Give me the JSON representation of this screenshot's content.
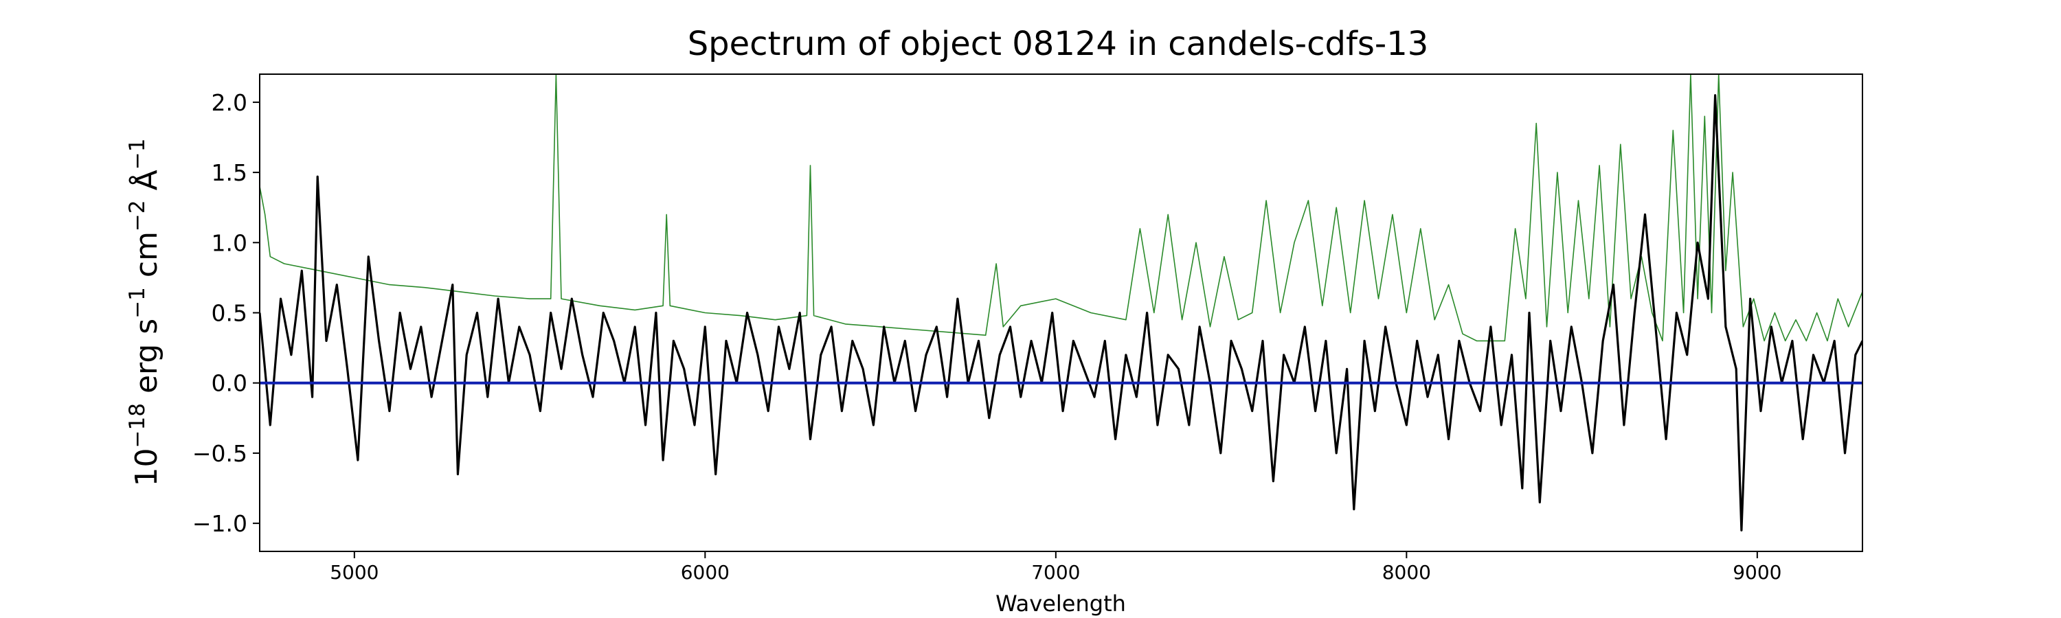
{
  "chart_data": {
    "type": "line",
    "title": "Spectrum of object 08124 in candels-cdfs-13",
    "xlabel": "Wavelength",
    "ylabel_base": "10",
    "ylabel_exp": "−18",
    "ylabel_units": [
      {
        "t": " erg s",
        "sup": "−1"
      },
      {
        "t": " cm",
        "sup": "−2"
      },
      {
        "t": " Å",
        "sup": "−1"
      }
    ],
    "xlim": [
      4730,
      9300
    ],
    "ylim": [
      -1.2,
      2.2
    ],
    "xticks": [
      5000,
      6000,
      7000,
      8000,
      9000
    ],
    "xtick_labels": [
      "5000",
      "6000",
      "7000",
      "8000",
      "9000"
    ],
    "yticks": [
      -1.0,
      -0.5,
      0.0,
      0.5,
      1.0,
      1.5,
      2.0
    ],
    "ytick_labels": [
      "−1.0",
      "−0.5",
      "0.0",
      "0.5",
      "1.0",
      "1.5",
      "2.0"
    ],
    "grid": false,
    "colors": {
      "flux": "#000000",
      "error": "#2a8a2a",
      "zero": "#1020b0"
    },
    "series": [
      {
        "role": "flux",
        "x": [
          4730,
          4760,
          4790,
          4820,
          4850,
          4880,
          4895,
          4920,
          4950,
          4980,
          5010,
          5040,
          5070,
          5100,
          5130,
          5160,
          5190,
          5220,
          5250,
          5280,
          5295,
          5320,
          5350,
          5380,
          5410,
          5440,
          5470,
          5500,
          5530,
          5560,
          5590,
          5620,
          5650,
          5680,
          5710,
          5740,
          5770,
          5800,
          5830,
          5860,
          5880,
          5910,
          5940,
          5970,
          6000,
          6030,
          6060,
          6090,
          6120,
          6150,
          6180,
          6210,
          6240,
          6270,
          6300,
          6330,
          6360,
          6390,
          6420,
          6450,
          6480,
          6510,
          6540,
          6570,
          6600,
          6630,
          6660,
          6690,
          6720,
          6750,
          6780,
          6810,
          6840,
          6870,
          6900,
          6930,
          6960,
          6990,
          7020,
          7050,
          7080,
          7110,
          7140,
          7170,
          7200,
          7230,
          7260,
          7290,
          7320,
          7350,
          7380,
          7410,
          7440,
          7470,
          7500,
          7530,
          7560,
          7590,
          7620,
          7650,
          7680,
          7710,
          7740,
          7770,
          7800,
          7830,
          7850,
          7880,
          7910,
          7940,
          7970,
          8000,
          8030,
          8060,
          8090,
          8120,
          8150,
          8180,
          8210,
          8240,
          8270,
          8300,
          8330,
          8350,
          8380,
          8410,
          8440,
          8470,
          8500,
          8530,
          8560,
          8590,
          8620,
          8650,
          8680,
          8710,
          8740,
          8770,
          8800,
          8830,
          8860,
          8880,
          8910,
          8940,
          8955,
          8980,
          9010,
          9040,
          9070,
          9100,
          9130,
          9160,
          9190,
          9220,
          9250,
          9280,
          9300
        ],
        "y": [
          0.5,
          -0.3,
          0.6,
          0.2,
          0.8,
          -0.1,
          1.47,
          0.3,
          0.7,
          0.1,
          -0.55,
          0.9,
          0.3,
          -0.2,
          0.5,
          0.1,
          0.4,
          -0.1,
          0.3,
          0.7,
          -0.65,
          0.2,
          0.5,
          -0.1,
          0.6,
          0.0,
          0.4,
          0.2,
          -0.2,
          0.5,
          0.1,
          0.6,
          0.2,
          -0.1,
          0.5,
          0.3,
          0.0,
          0.4,
          -0.3,
          0.5,
          -0.55,
          0.3,
          0.1,
          -0.3,
          0.4,
          -0.65,
          0.3,
          0.0,
          0.5,
          0.2,
          -0.2,
          0.4,
          0.1,
          0.5,
          -0.4,
          0.2,
          0.4,
          -0.2,
          0.3,
          0.1,
          -0.3,
          0.4,
          0.0,
          0.3,
          -0.2,
          0.2,
          0.4,
          -0.1,
          0.6,
          0.0,
          0.3,
          -0.25,
          0.2,
          0.4,
          -0.1,
          0.3,
          0.0,
          0.5,
          -0.2,
          0.3,
          0.1,
          -0.1,
          0.3,
          -0.4,
          0.2,
          -0.1,
          0.5,
          -0.3,
          0.2,
          0.1,
          -0.3,
          0.4,
          0.0,
          -0.5,
          0.3,
          0.1,
          -0.2,
          0.3,
          -0.7,
          0.2,
          0.0,
          0.4,
          -0.2,
          0.3,
          -0.5,
          0.1,
          -0.9,
          0.3,
          -0.2,
          0.4,
          0.0,
          -0.3,
          0.3,
          -0.1,
          0.2,
          -0.4,
          0.3,
          0.0,
          -0.2,
          0.4,
          -0.3,
          0.2,
          -0.75,
          0.5,
          -0.85,
          0.3,
          -0.2,
          0.4,
          0.0,
          -0.5,
          0.3,
          0.7,
          -0.3,
          0.5,
          1.2,
          0.4,
          -0.4,
          0.5,
          0.2,
          1.0,
          0.6,
          2.05,
          0.4,
          0.1,
          -1.05,
          0.6,
          -0.2,
          0.4,
          0.0,
          0.3,
          -0.4,
          0.2,
          0.0,
          0.3,
          -0.5,
          0.2,
          0.3
        ]
      },
      {
        "role": "error",
        "x": [
          4730,
          4745,
          4760,
          4800,
          4900,
          5000,
          5100,
          5200,
          5300,
          5400,
          5500,
          5560,
          5575,
          5590,
          5700,
          5800,
          5880,
          5890,
          5900,
          6000,
          6100,
          6200,
          6290,
          6300,
          6310,
          6400,
          6500,
          6600,
          6700,
          6800,
          6830,
          6850,
          6900,
          7000,
          7100,
          7200,
          7240,
          7280,
          7320,
          7360,
          7400,
          7440,
          7480,
          7520,
          7560,
          7600,
          7640,
          7680,
          7720,
          7760,
          7800,
          7840,
          7880,
          7920,
          7960,
          8000,
          8040,
          8080,
          8120,
          8160,
          8200,
          8240,
          8280,
          8310,
          8340,
          8370,
          8400,
          8430,
          8460,
          8490,
          8520,
          8550,
          8580,
          8610,
          8640,
          8670,
          8700,
          8730,
          8760,
          8790,
          8810,
          8830,
          8850,
          8870,
          8890,
          8910,
          8930,
          8960,
          8990,
          9020,
          9050,
          9080,
          9110,
          9140,
          9170,
          9200,
          9230,
          9260,
          9300
        ],
        "y": [
          1.4,
          1.2,
          0.9,
          0.85,
          0.8,
          0.75,
          0.7,
          0.68,
          0.65,
          0.62,
          0.6,
          0.6,
          2.2,
          0.6,
          0.55,
          0.52,
          0.55,
          1.2,
          0.55,
          0.5,
          0.48,
          0.45,
          0.48,
          1.55,
          0.48,
          0.42,
          0.4,
          0.38,
          0.36,
          0.34,
          0.85,
          0.4,
          0.55,
          0.6,
          0.5,
          0.45,
          1.1,
          0.5,
          1.2,
          0.45,
          1.0,
          0.4,
          0.9,
          0.45,
          0.5,
          1.3,
          0.5,
          1.0,
          1.3,
          0.55,
          1.25,
          0.5,
          1.3,
          0.6,
          1.2,
          0.5,
          1.1,
          0.45,
          0.7,
          0.35,
          0.3,
          0.3,
          0.3,
          1.1,
          0.6,
          1.85,
          0.4,
          1.5,
          0.5,
          1.3,
          0.6,
          1.55,
          0.4,
          1.7,
          0.6,
          0.9,
          0.5,
          0.3,
          1.8,
          0.5,
          2.2,
          0.6,
          1.9,
          0.5,
          2.2,
          0.8,
          1.5,
          0.4,
          0.6,
          0.3,
          0.5,
          0.3,
          0.45,
          0.3,
          0.5,
          0.3,
          0.6,
          0.4,
          0.65
        ]
      },
      {
        "role": "zero",
        "x": [
          4730,
          9300
        ],
        "y": [
          0.0,
          0.0
        ]
      }
    ]
  }
}
